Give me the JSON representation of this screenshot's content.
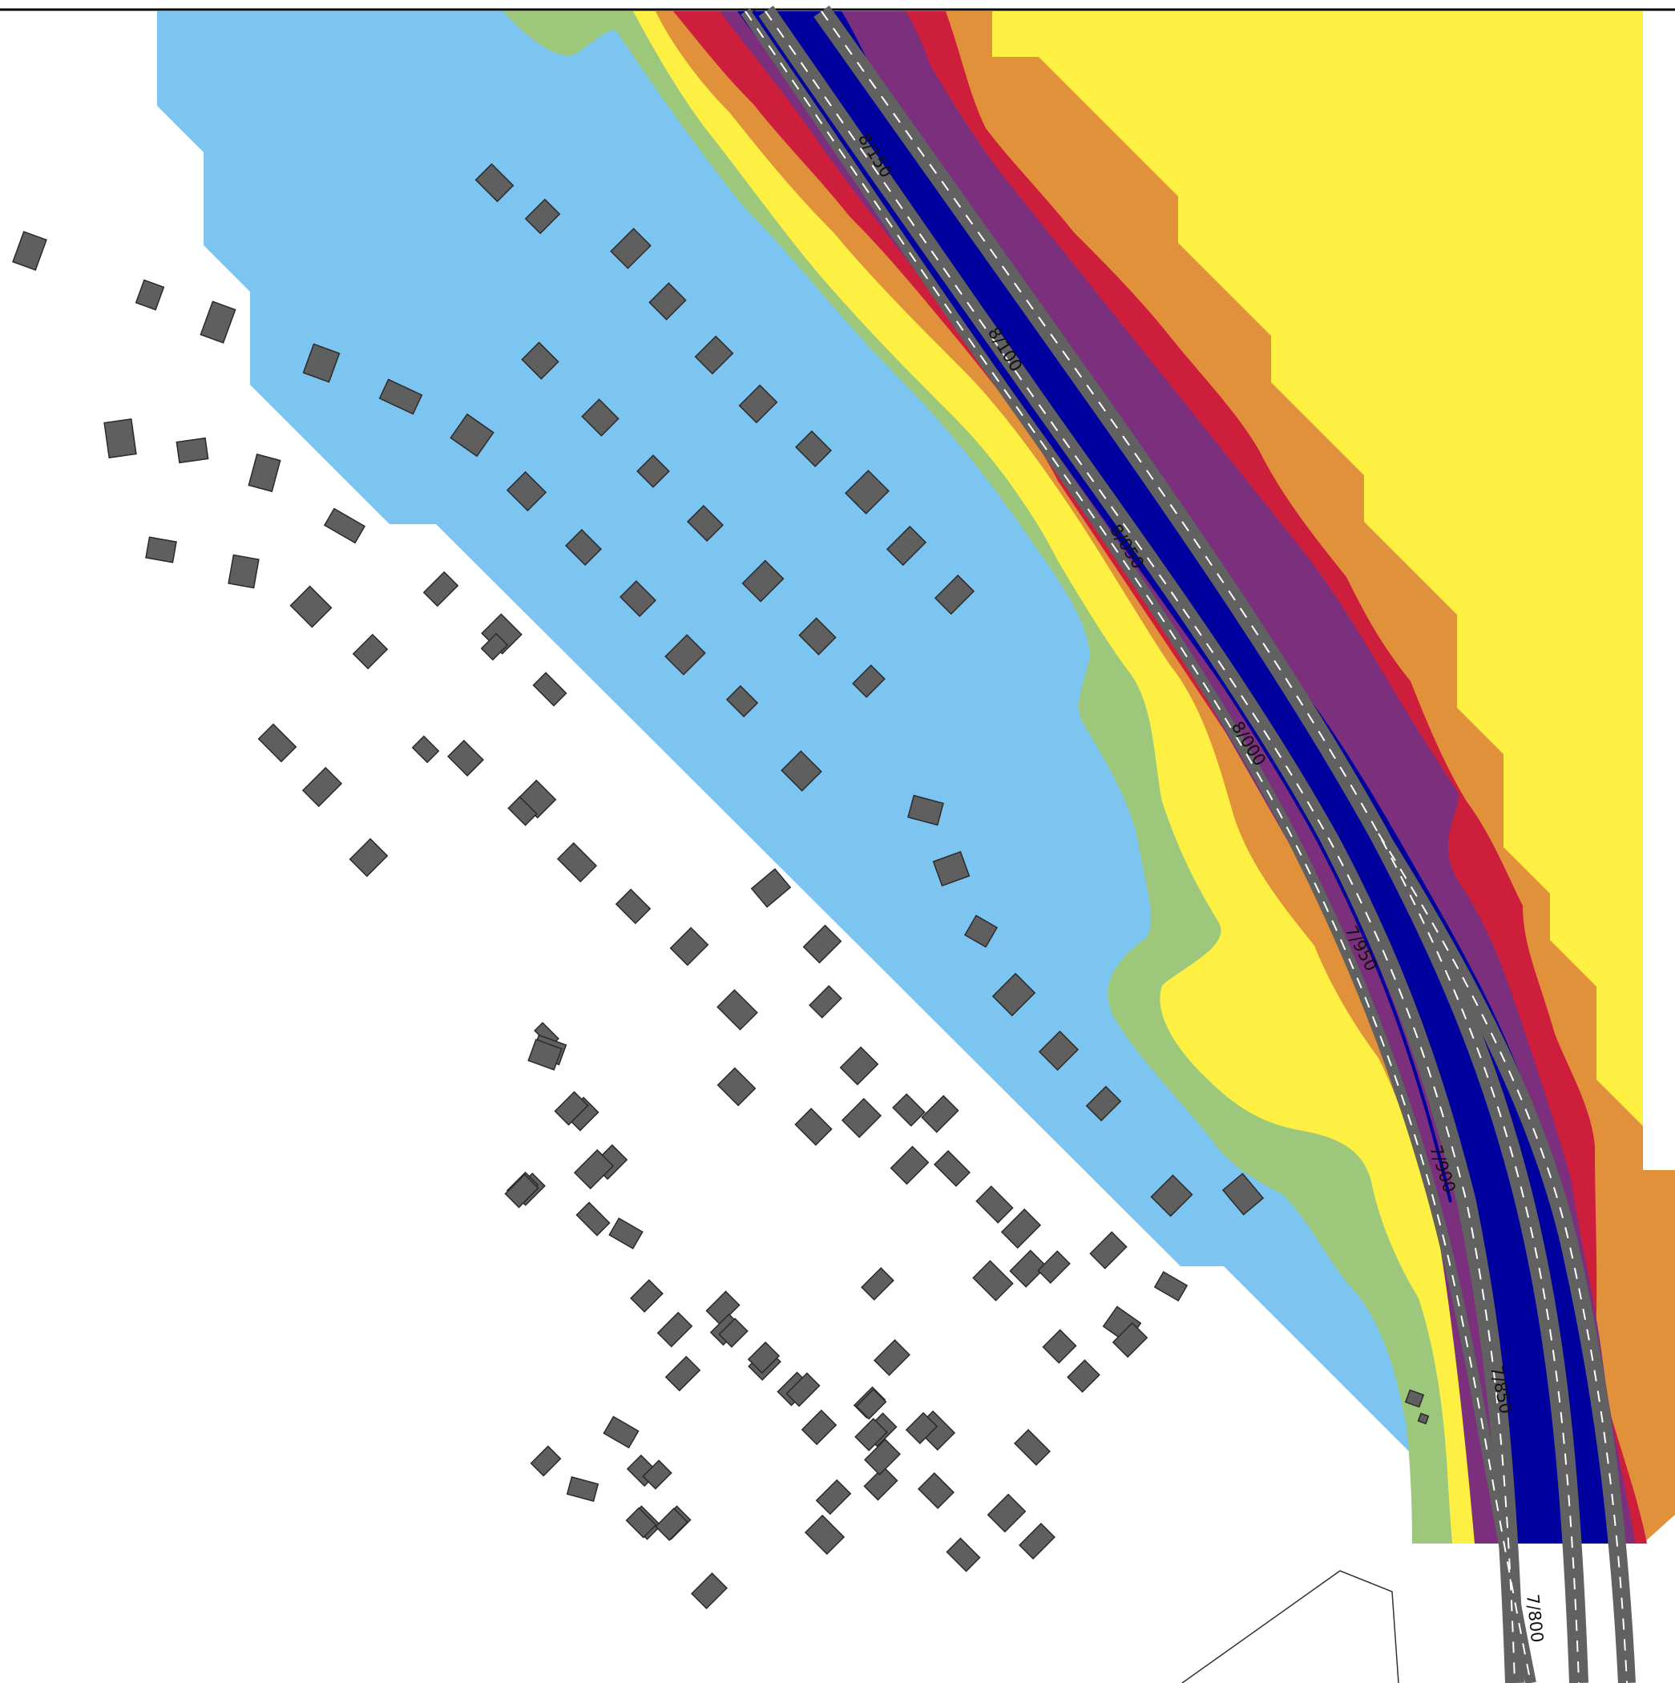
{
  "map": {
    "colors": {
      "zone_light_blue": "#7dc5f1",
      "zone_green": "#9dc87c",
      "zone_yellow": "#fdf042",
      "zone_orange": "#e0913a",
      "zone_red": "#cd1f3c",
      "zone_purple": "#7c2f7d",
      "zone_blue": "#00009e",
      "road": "#616161",
      "road_dash": "#ffffff",
      "building": "#5f5f5f"
    },
    "road_markers": [
      "8/150",
      "8/100",
      "8/050",
      "8/000",
      "7/950",
      "7/900",
      "7/850",
      "7/800"
    ],
    "has_frame_top_line": true
  }
}
